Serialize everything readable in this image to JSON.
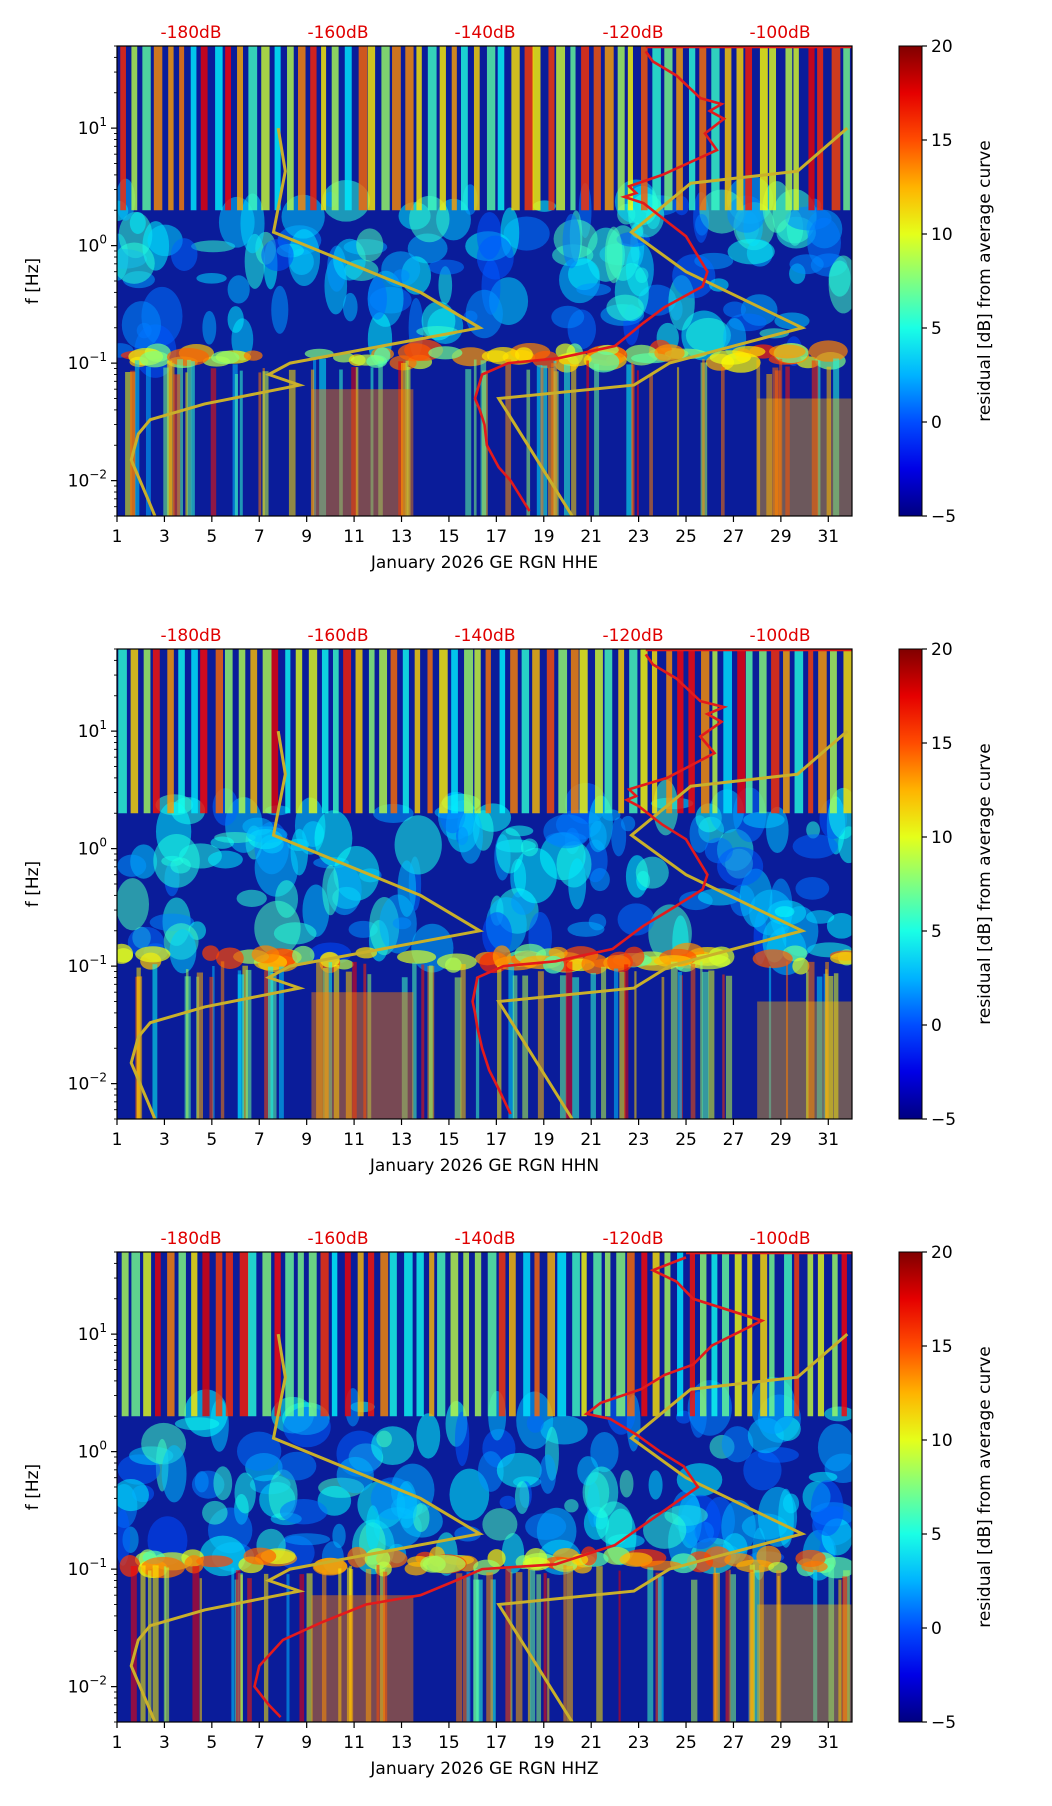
{
  "chart_data": [
    {
      "type": "heatmap",
      "title": "",
      "station": "GE RGN",
      "channel": "HHE",
      "xlabel": "January 2026 GE RGN  HHE",
      "ylabel": "f [Hz]",
      "x_ticks": [
        "1",
        "3",
        "5",
        "7",
        "9",
        "11",
        "13",
        "15",
        "17",
        "19",
        "21",
        "23",
        "25",
        "27",
        "29",
        "31"
      ],
      "y_ticks": [
        {
          "label": "10−2",
          "base": "10",
          "exp": "−2",
          "value": 0.01
        },
        {
          "label": "10−1",
          "base": "10",
          "exp": "−1",
          "value": 0.1
        },
        {
          "label": "10⁰",
          "base": "10",
          "exp": "0",
          "value": 1
        },
        {
          "label": "10¹",
          "base": "10",
          "exp": "1",
          "value": 10
        }
      ],
      "top_axis_labels": [
        "-180dB",
        "-160dB",
        "-140dB",
        "-120dB",
        "-100dB"
      ],
      "colorbar": {
        "label": "residual [dB] from average curve",
        "ticks": [
          "−5",
          "0",
          "5",
          "10",
          "15",
          "20"
        ],
        "min": -5,
        "max": 20,
        "colormap": "jet"
      },
      "xlim": [
        1,
        32
      ],
      "ylim_hz": [
        0.005,
        50
      ],
      "average_curve_red": {
        "x": [
          23.3,
          23.6,
          24.6,
          25.6,
          26.5,
          26.0,
          26.6,
          25.8,
          26.3,
          24.0,
          22.6,
          22.9,
          22.4,
          23.2,
          24.2,
          25.0,
          25.9,
          25.7,
          24.1,
          23.2,
          22.0,
          19.6,
          17.5,
          16.4,
          16.1,
          16.3,
          16.5,
          16.6,
          17.1,
          17.6,
          18.4
        ],
        "y": [
          45,
          37,
          28,
          18,
          16,
          14,
          12,
          9,
          6.5,
          4,
          3.2,
          2.8,
          2.6,
          2.3,
          1.6,
          1.2,
          0.6,
          0.45,
          0.3,
          0.22,
          0.14,
          0.11,
          0.1,
          0.08,
          0.05,
          0.04,
          0.03,
          0.02,
          0.013,
          0.01,
          0.0055
        ]
      },
      "model_curves_gold": [
        {
          "name": "low noise model",
          "x": [
            2.6,
            2.3,
            1.6,
            1.9,
            2.4,
            4.7,
            8.7,
            7.4,
            8.3,
            16.3,
            13.8,
            7.6,
            8.1,
            7.8
          ],
          "y": [
            0.005,
            0.007,
            0.015,
            0.025,
            0.033,
            0.045,
            0.065,
            0.08,
            0.1,
            0.2,
            0.4,
            1.3,
            4.3,
            10
          ]
        },
        {
          "name": "high noise model",
          "x": [
            20.2,
            17.1,
            22.8,
            24.3,
            29.9,
            25.0,
            22.7,
            25.2,
            29.7,
            31.8
          ],
          "y": [
            0.005,
            0.05,
            0.065,
            0.1,
            0.2,
            0.6,
            1.3,
            3.4,
            4.3,
            10
          ]
        }
      ]
    },
    {
      "type": "heatmap",
      "title": "",
      "station": "GE RGN",
      "channel": "HHN",
      "xlabel": "January 2026 GE RGN  HHN",
      "ylabel": "f [Hz]",
      "x_ticks": [
        "1",
        "3",
        "5",
        "7",
        "9",
        "11",
        "13",
        "15",
        "17",
        "19",
        "21",
        "23",
        "25",
        "27",
        "29",
        "31"
      ],
      "y_ticks": [
        {
          "label": "10−2",
          "base": "10",
          "exp": "−2",
          "value": 0.01
        },
        {
          "label": "10−1",
          "base": "10",
          "exp": "−1",
          "value": 0.1
        },
        {
          "label": "10⁰",
          "base": "10",
          "exp": "0",
          "value": 1
        },
        {
          "label": "10¹",
          "base": "10",
          "exp": "1",
          "value": 10
        }
      ],
      "top_axis_labels": [
        "-180dB",
        "-160dB",
        "-140dB",
        "-120dB",
        "-100dB"
      ],
      "colorbar": {
        "label": "residual [dB] from average curve",
        "ticks": [
          "−5",
          "0",
          "5",
          "10",
          "15",
          "20"
        ],
        "min": -5,
        "max": 20,
        "colormap": "jet"
      },
      "xlim": [
        1,
        32
      ],
      "ylim_hz": [
        0.005,
        50
      ],
      "average_curve_red": {
        "x": [
          23.3,
          23.6,
          24.6,
          25.6,
          26.6,
          25.9,
          26.5,
          25.6,
          26.2,
          24.2,
          22.6,
          22.9,
          22.5,
          23.0,
          24.0,
          25.0,
          25.9,
          25.7,
          24.3,
          23.2,
          21.9,
          19.5,
          17.3,
          16.2,
          16.0,
          16.1,
          16.2,
          16.4,
          16.7,
          17.1,
          17.6
        ],
        "y": [
          45,
          37,
          28,
          18,
          16,
          14,
          12,
          9,
          6.5,
          4,
          3.2,
          2.8,
          2.6,
          2.3,
          1.6,
          1.2,
          0.6,
          0.45,
          0.3,
          0.22,
          0.14,
          0.11,
          0.1,
          0.08,
          0.05,
          0.04,
          0.03,
          0.02,
          0.013,
          0.009,
          0.0055
        ]
      },
      "model_curves_gold": [
        {
          "name": "low noise model",
          "x": [
            2.6,
            2.3,
            1.6,
            1.9,
            2.4,
            4.7,
            8.7,
            7.4,
            8.3,
            16.3,
            13.8,
            7.6,
            8.1,
            7.8
          ],
          "y": [
            0.005,
            0.007,
            0.015,
            0.025,
            0.033,
            0.045,
            0.065,
            0.08,
            0.1,
            0.2,
            0.4,
            1.3,
            4.3,
            10
          ]
        },
        {
          "name": "high noise model",
          "x": [
            20.2,
            17.1,
            22.8,
            24.3,
            29.9,
            25.0,
            22.7,
            25.2,
            29.7,
            31.8
          ],
          "y": [
            0.005,
            0.05,
            0.065,
            0.1,
            0.2,
            0.6,
            1.3,
            3.4,
            4.3,
            10
          ]
        }
      ]
    },
    {
      "type": "heatmap",
      "title": "",
      "station": "GE RGN",
      "channel": "HHZ",
      "xlabel": "January 2026 GE RGN  HHZ",
      "ylabel": "f [Hz]",
      "x_ticks": [
        "1",
        "3",
        "5",
        "7",
        "9",
        "11",
        "13",
        "15",
        "17",
        "19",
        "21",
        "23",
        "25",
        "27",
        "29",
        "31"
      ],
      "y_ticks": [
        {
          "label": "10−2",
          "base": "10",
          "exp": "−2",
          "value": 0.01
        },
        {
          "label": "10−1",
          "base": "10",
          "exp": "−1",
          "value": 0.1
        },
        {
          "label": "10⁰",
          "base": "10",
          "exp": "0",
          "value": 1
        },
        {
          "label": "10¹",
          "base": "10",
          "exp": "1",
          "value": 10
        }
      ],
      "top_axis_labels": [
        "-180dB",
        "-160dB",
        "-140dB",
        "-120dB",
        "-100dB"
      ],
      "colorbar": {
        "label": "residual [dB] from average curve",
        "ticks": [
          "−5",
          "0",
          "5",
          "10",
          "15",
          "20"
        ],
        "min": -5,
        "max": 20,
        "colormap": "jet"
      },
      "xlim": [
        1,
        32
      ],
      "ylim_hz": [
        0.005,
        50
      ],
      "average_curve_red": {
        "x": [
          25.0,
          23.6,
          24.6,
          25.3,
          28.2,
          26.1,
          25.3,
          24.1,
          23.1,
          21.4,
          20.8,
          21.8,
          22.9,
          23.9,
          24.9,
          25.5,
          22.0,
          19.5,
          16.4,
          15.3,
          13.8,
          11.5,
          9.6,
          8.0,
          7.0,
          6.8,
          7.4,
          7.9
        ],
        "y": [
          45,
          35,
          28,
          20,
          13,
          8,
          5.5,
          4.5,
          3.4,
          2.6,
          2.1,
          1.9,
          1.4,
          1.0,
          0.75,
          0.5,
          0.16,
          0.11,
          0.1,
          0.08,
          0.06,
          0.05,
          0.035,
          0.025,
          0.015,
          0.01,
          0.007,
          0.0055
        ]
      },
      "model_curves_gold": [
        {
          "name": "low noise model",
          "x": [
            2.6,
            2.3,
            1.6,
            1.9,
            2.4,
            4.7,
            8.7,
            7.4,
            8.3,
            16.3,
            13.8,
            7.6,
            8.1,
            7.8
          ],
          "y": [
            0.005,
            0.007,
            0.015,
            0.025,
            0.033,
            0.045,
            0.065,
            0.08,
            0.1,
            0.2,
            0.4,
            1.3,
            4.3,
            10
          ]
        },
        {
          "name": "high noise model",
          "x": [
            20.2,
            17.1,
            22.8,
            24.3,
            29.9,
            25.0,
            22.7,
            25.2,
            29.7,
            31.8
          ],
          "y": [
            0.005,
            0.05,
            0.065,
            0.1,
            0.2,
            0.6,
            1.3,
            3.4,
            4.3,
            10
          ]
        }
      ]
    }
  ],
  "colors": {
    "average_curve": "#e31a1c",
    "model_curve": "#c9b02a",
    "top_labels": "#e00000"
  }
}
